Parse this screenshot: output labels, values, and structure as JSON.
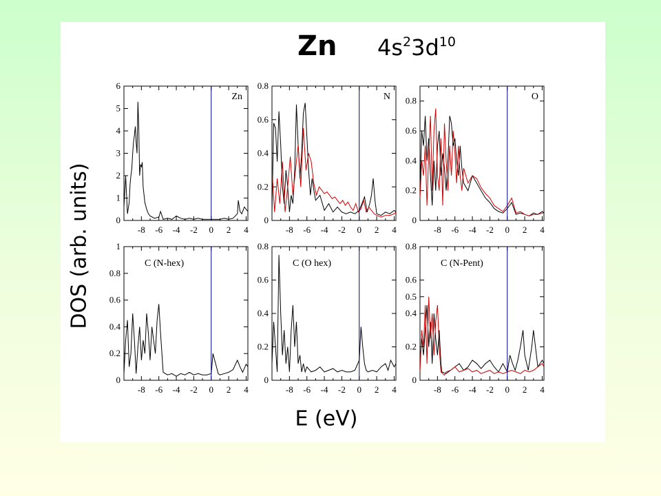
{
  "slide": {
    "title_element": "Zn",
    "title_config": {
      "part1": "4s",
      "sup1": "2",
      "part2": "3d",
      "sup2": "10"
    },
    "ylabel": "DOS (arb. units)",
    "xlabel": "E (eV)",
    "colors": {
      "background_top": "#ccffcc",
      "background_bottom": "#ffffe6",
      "panel": "#ffffff",
      "series_black": "#000000",
      "series_red": "#cc0000",
      "fermi_line": "#000080"
    }
  },
  "chart_data": [
    {
      "type": "line",
      "label": "Zn",
      "xlim": [
        -10,
        4.2
      ],
      "ylim": [
        0,
        6
      ],
      "xticks": [
        -8,
        -6,
        -4,
        -2,
        0,
        2,
        4
      ],
      "yticks": [
        0,
        1,
        2,
        3,
        4,
        5,
        6
      ],
      "ytick_labels": [
        "0",
        "1",
        "2",
        "3",
        "4",
        "5",
        "6"
      ],
      "fermi_level": 0,
      "series": [
        {
          "color": "#000000",
          "x": [
            -10,
            -9.8,
            -9.6,
            -9.4,
            -9.3,
            -9.2,
            -9.1,
            -9.0,
            -8.9,
            -8.8,
            -8.7,
            -8.6,
            -8.5,
            -8.4,
            -8.3,
            -8.2,
            -8.1,
            -8.0,
            -7.9,
            -7.8,
            -7.6,
            -7.4,
            -7.2,
            -7.0,
            -6.5,
            -6.0,
            -5.8,
            -5.5,
            -5.0,
            -4.5,
            -4.0,
            -3.5,
            -3.0,
            -2.5,
            -2.0,
            -1.5,
            -1.0,
            -0.5,
            0.0,
            0.5,
            1.0,
            1.5,
            2.0,
            2.5,
            3.0,
            3.1,
            3.3,
            3.5,
            3.8,
            4.0,
            4.2
          ],
          "y": [
            0.6,
            2.0,
            0.3,
            0.8,
            1.6,
            2.0,
            2.3,
            3.0,
            3.5,
            3.8,
            4.2,
            3.5,
            3.0,
            5.3,
            4.2,
            2.0,
            2.5,
            2.4,
            2.6,
            1.5,
            0.8,
            0.5,
            0.3,
            0.2,
            0.1,
            0.15,
            0.4,
            0.05,
            0.1,
            0.05,
            0.2,
            0.1,
            0.05,
            0.1,
            0.05,
            0.1,
            0.05,
            0.05,
            0.05,
            0.05,
            0.05,
            0.1,
            0.05,
            0.1,
            0.3,
            0.9,
            0.4,
            0.3,
            0.6,
            0.5,
            0.4
          ]
        }
      ]
    },
    {
      "type": "line",
      "label": "N",
      "xlim": [
        -10,
        4.2
      ],
      "ylim": [
        0,
        0.8
      ],
      "xticks": [
        -8,
        -6,
        -4,
        -2,
        0,
        2,
        4
      ],
      "yticks": [
        0,
        0.2,
        0.4,
        0.6,
        0.8
      ],
      "ytick_labels": [
        "0",
        "0.2",
        "0.4",
        "0.6",
        "0.8"
      ],
      "fermi_level": 0,
      "series": [
        {
          "color": "#000000",
          "x": [
            -10,
            -9.8,
            -9.6,
            -9.4,
            -9.2,
            -9.0,
            -8.8,
            -8.6,
            -8.4,
            -8.2,
            -8.0,
            -7.8,
            -7.6,
            -7.4,
            -7.2,
            -7.0,
            -6.8,
            -6.6,
            -6.4,
            -6.2,
            -6.0,
            -5.8,
            -5.6,
            -5.4,
            -5.2,
            -5.0,
            -4.5,
            -4.0,
            -3.5,
            -3.0,
            -2.5,
            -2.0,
            -1.5,
            -1.0,
            -0.5,
            0.0,
            0.3,
            0.6,
            0.9,
            1.2,
            1.4,
            1.6,
            1.8,
            2.0,
            2.5,
            3.0,
            3.5,
            4.0,
            4.2
          ],
          "y": [
            0.05,
            0.58,
            0.55,
            0.35,
            0.65,
            0.45,
            0.2,
            0.1,
            0.3,
            0.2,
            0.05,
            0.15,
            0.1,
            0.3,
            0.69,
            0.45,
            0.25,
            0.4,
            0.64,
            0.7,
            0.5,
            0.3,
            0.15,
            0.25,
            0.18,
            0.12,
            0.15,
            0.06,
            0.1,
            0.05,
            0.08,
            0.05,
            0.04,
            0.05,
            0.04,
            0.06,
            0.1,
            0.14,
            0.05,
            0.1,
            0.15,
            0.25,
            0.12,
            0.04,
            0.03,
            0.05,
            0.04,
            0.06,
            0.05
          ]
        },
        {
          "color": "#cc0000",
          "x": [
            -10,
            -9.7,
            -9.4,
            -9.1,
            -8.8,
            -8.5,
            -8.2,
            -7.9,
            -7.6,
            -7.3,
            -7.0,
            -6.7,
            -6.4,
            -6.1,
            -5.8,
            -5.5,
            -5.2,
            -4.9,
            -4.6,
            -4.3,
            -4.0,
            -3.7,
            -3.4,
            -3.1,
            -2.8,
            -2.5,
            -2.2,
            -1.9,
            -1.6,
            -1.3,
            -1.0,
            -0.7,
            -0.4,
            -0.1,
            0.2,
            0.5,
            0.8,
            1.1,
            1.4,
            1.7,
            2.0,
            2.5,
            3.0,
            3.5,
            4.0,
            4.2
          ],
          "y": [
            0.3,
            0.05,
            0.25,
            0.1,
            0.35,
            0.05,
            0.2,
            0.38,
            0.15,
            0.3,
            0.45,
            0.2,
            0.55,
            0.3,
            0.4,
            0.35,
            0.22,
            0.15,
            0.2,
            0.18,
            0.16,
            0.17,
            0.15,
            0.13,
            0.14,
            0.12,
            0.1,
            0.12,
            0.09,
            0.11,
            0.08,
            0.06,
            0.1,
            0.05,
            0.07,
            0.12,
            0.05,
            0.08,
            0.06,
            0.04,
            0.03,
            0.02,
            0.03,
            0.03,
            0.04,
            0.05
          ]
        }
      ]
    },
    {
      "type": "line",
      "label": "O",
      "xlim": [
        -10,
        4.2
      ],
      "ylim": [
        0,
        0.9
      ],
      "xticks": [
        -8,
        -6,
        -4,
        -2,
        0,
        2,
        4
      ],
      "yticks": [
        0,
        0.2,
        0.4,
        0.6,
        0.8
      ],
      "ytick_labels": [
        "0",
        "0.2",
        "0.4",
        "0.6",
        "0.8"
      ],
      "fermi_level": 0,
      "series": [
        {
          "color": "#000000",
          "x": [
            -10,
            -9.8,
            -9.6,
            -9.4,
            -9.2,
            -9.0,
            -8.8,
            -8.6,
            -8.4,
            -8.2,
            -8.0,
            -7.8,
            -7.6,
            -7.4,
            -7.2,
            -7.0,
            -6.8,
            -6.6,
            -6.4,
            -6.2,
            -6.0,
            -5.8,
            -5.6,
            -5.4,
            -5.2,
            -5.0,
            -4.5,
            -4.0,
            -3.5,
            -3.0,
            -2.5,
            -2.0,
            -1.5,
            -1.0,
            -0.5,
            0.0,
            0.5,
            1.0,
            1.5,
            2.0,
            2.5,
            3.0,
            3.5,
            4.0,
            4.2
          ],
          "y": [
            0.2,
            0.6,
            0.5,
            0.7,
            0.4,
            0.55,
            0.3,
            0.1,
            0.4,
            0.2,
            0.5,
            0.6,
            0.3,
            0.45,
            0.35,
            0.2,
            0.4,
            0.7,
            0.65,
            0.5,
            0.55,
            0.4,
            0.3,
            0.5,
            0.35,
            0.25,
            0.2,
            0.3,
            0.25,
            0.2,
            0.15,
            0.12,
            0.08,
            0.06,
            0.05,
            0.08,
            0.12,
            0.04,
            0.05,
            0.04,
            0.03,
            0.05,
            0.04,
            0.06,
            0.05
          ]
        },
        {
          "color": "#cc0000",
          "x": [
            -10,
            -9.8,
            -9.6,
            -9.4,
            -9.2,
            -9.0,
            -8.8,
            -8.6,
            -8.4,
            -8.2,
            -8.0,
            -7.8,
            -7.6,
            -7.4,
            -7.2,
            -7.0,
            -6.8,
            -6.6,
            -6.4,
            -6.2,
            -6.0,
            -5.8,
            -5.6,
            -5.4,
            -5.2,
            -5.0,
            -4.5,
            -4.0,
            -3.5,
            -3.0,
            -2.5,
            -2.0,
            -1.5,
            -1.0,
            -0.5,
            0.0,
            0.5,
            1.0,
            1.5,
            2.0,
            2.5,
            3.0,
            3.5,
            4.0,
            4.2
          ],
          "y": [
            0.15,
            0.4,
            0.3,
            0.5,
            0.1,
            0.45,
            0.7,
            0.2,
            0.6,
            0.75,
            0.3,
            0.2,
            0.55,
            0.1,
            0.65,
            0.4,
            0.2,
            0.5,
            0.3,
            0.6,
            0.45,
            0.25,
            0.5,
            0.3,
            0.2,
            0.35,
            0.25,
            0.3,
            0.28,
            0.22,
            0.18,
            0.15,
            0.1,
            0.08,
            0.06,
            0.1,
            0.15,
            0.05,
            0.06,
            0.04,
            0.03,
            0.04,
            0.04,
            0.05,
            0.05
          ]
        }
      ]
    },
    {
      "type": "line",
      "label": "C (N-hex)",
      "xlim": [
        -10,
        4.2
      ],
      "ylim": [
        0,
        1
      ],
      "xticks": [
        -8,
        -6,
        -4,
        -2,
        0,
        2,
        4
      ],
      "yticks": [
        0,
        0.2,
        0.4,
        0.6,
        0.8,
        1
      ],
      "ytick_labels": [
        "0",
        "0.2",
        "0.4",
        "0.6",
        "0.8",
        "1"
      ],
      "fermi_level": 0,
      "series": [
        {
          "color": "#000000",
          "x": [
            -10,
            -9.8,
            -9.6,
            -9.4,
            -9.2,
            -9.0,
            -8.8,
            -8.6,
            -8.4,
            -8.2,
            -8.0,
            -7.8,
            -7.6,
            -7.4,
            -7.2,
            -7.0,
            -6.8,
            -6.6,
            -6.4,
            -6.2,
            -6.0,
            -5.8,
            -5.6,
            -5.5,
            -5.0,
            -4.5,
            -4.0,
            -3.5,
            -3.0,
            -2.5,
            -2.0,
            -1.5,
            -1.0,
            -0.5,
            0.0,
            0.2,
            0.4,
            0.6,
            0.8,
            1.0,
            1.5,
            2.0,
            2.5,
            3.0,
            3.3,
            3.6,
            4.0,
            4.2
          ],
          "y": [
            0.05,
            0.3,
            0.45,
            0.1,
            0.2,
            0.5,
            0.3,
            0.05,
            0.25,
            0.4,
            0.15,
            0.3,
            0.2,
            0.5,
            0.35,
            0.15,
            0.4,
            0.3,
            0.2,
            0.45,
            0.57,
            0.35,
            0.15,
            0.06,
            0.04,
            0.05,
            0.03,
            0.05,
            0.04,
            0.06,
            0.04,
            0.05,
            0.04,
            0.04,
            0.05,
            0.2,
            0.15,
            0.1,
            0.05,
            0.04,
            0.05,
            0.06,
            0.08,
            0.15,
            0.1,
            0.06,
            0.12,
            0.1
          ]
        }
      ]
    },
    {
      "type": "line",
      "label": "C (O hex)",
      "xlim": [
        -10,
        4.2
      ],
      "ylim": [
        0,
        0.8
      ],
      "xticks": [
        -8,
        -6,
        -4,
        -2,
        0,
        2,
        4
      ],
      "yticks": [
        0,
        0.2,
        0.4,
        0.6,
        0.8
      ],
      "ytick_labels": [
        "0",
        "0.2",
        "0.4",
        "0.6",
        "0.8"
      ],
      "fermi_level": 0,
      "series": [
        {
          "color": "#000000",
          "x": [
            -10,
            -9.8,
            -9.6,
            -9.4,
            -9.2,
            -9.0,
            -8.8,
            -8.6,
            -8.4,
            -8.2,
            -8.0,
            -7.8,
            -7.6,
            -7.4,
            -7.2,
            -7.0,
            -6.8,
            -6.6,
            -6.4,
            -6.2,
            -6.0,
            -5.5,
            -5.0,
            -4.5,
            -4.0,
            -3.5,
            -3.0,
            -2.5,
            -2.0,
            -1.5,
            -1.0,
            -0.5,
            0.0,
            0.2,
            0.4,
            0.6,
            0.8,
            1.0,
            1.5,
            2.0,
            2.5,
            3.0,
            3.3,
            3.6,
            4.0,
            4.2
          ],
          "y": [
            0.1,
            0.35,
            0.2,
            0.05,
            0.75,
            0.4,
            0.15,
            0.3,
            0.1,
            0.2,
            0.05,
            0.3,
            0.45,
            0.2,
            0.35,
            0.1,
            0.15,
            0.05,
            0.1,
            0.05,
            0.08,
            0.05,
            0.06,
            0.08,
            0.05,
            0.06,
            0.07,
            0.05,
            0.06,
            0.05,
            0.05,
            0.06,
            0.12,
            0.32,
            0.2,
            0.1,
            0.06,
            0.05,
            0.06,
            0.05,
            0.08,
            0.1,
            0.06,
            0.12,
            0.08,
            0.1
          ]
        }
      ]
    },
    {
      "type": "line",
      "label": "C (N-Pent)",
      "xlim": [
        -10,
        4.2
      ],
      "ylim": [
        0,
        0.8
      ],
      "xticks": [
        -8,
        -6,
        -4,
        -2,
        0,
        2,
        4
      ],
      "yticks": [
        0,
        0.2,
        0.4,
        0.5,
        0.6,
        0.8
      ],
      "ytick_labels": [
        "0",
        "0.2",
        "0.4",
        "0.5",
        "0.6",
        "0.8"
      ],
      "fermi_level": 0,
      "series": [
        {
          "color": "#000000",
          "x": [
            -10,
            -9.8,
            -9.6,
            -9.4,
            -9.2,
            -9.0,
            -8.8,
            -8.6,
            -8.4,
            -8.2,
            -8.0,
            -7.8,
            -7.6,
            -7.5,
            -7.0,
            -6.5,
            -6.0,
            -5.5,
            -5.0,
            -4.5,
            -4.0,
            -3.5,
            -3.0,
            -2.5,
            -2.0,
            -1.5,
            -1.0,
            -0.5,
            0.0,
            0.3,
            0.6,
            0.9,
            1.2,
            1.5,
            1.8,
            2.0,
            2.4,
            2.8,
            3.0,
            3.5,
            4.0,
            4.2
          ],
          "y": [
            0.1,
            0.25,
            0.15,
            0.3,
            0.45,
            0.2,
            0.35,
            0.1,
            0.4,
            0.25,
            0.15,
            0.3,
            0.1,
            0.05,
            0.04,
            0.06,
            0.08,
            0.1,
            0.06,
            0.08,
            0.12,
            0.1,
            0.07,
            0.1,
            0.12,
            0.08,
            0.05,
            0.1,
            0.05,
            0.15,
            0.1,
            0.06,
            0.12,
            0.2,
            0.3,
            0.15,
            0.06,
            0.2,
            0.3,
            0.08,
            0.12,
            0.1
          ]
        },
        {
          "color": "#cc0000",
          "x": [
            -10,
            -9.8,
            -9.6,
            -9.4,
            -9.2,
            -9.0,
            -8.8,
            -8.6,
            -8.4,
            -8.2,
            -8.0,
            -7.8,
            -7.6,
            -7.4,
            -7.2,
            -7.0,
            -6.5,
            -6.0,
            -5.5,
            -5.0,
            -4.5,
            -4.0,
            -3.5,
            -3.0,
            -2.5,
            -2.0,
            -1.5,
            -1.0,
            -0.5,
            0.0,
            0.5,
            1.0,
            1.5,
            2.0,
            2.5,
            3.0,
            3.5,
            4.0,
            4.2
          ],
          "y": [
            0.05,
            0.3,
            0.2,
            0.45,
            0.1,
            0.5,
            0.25,
            0.4,
            0.15,
            0.35,
            0.45,
            0.2,
            0.05,
            0.04,
            0.03,
            0.05,
            0.06,
            0.08,
            0.05,
            0.06,
            0.07,
            0.05,
            0.06,
            0.04,
            0.05,
            0.06,
            0.04,
            0.05,
            0.04,
            0.05,
            0.06,
            0.05,
            0.04,
            0.06,
            0.05,
            0.06,
            0.08,
            0.1,
            0.08
          ]
        }
      ]
    }
  ]
}
